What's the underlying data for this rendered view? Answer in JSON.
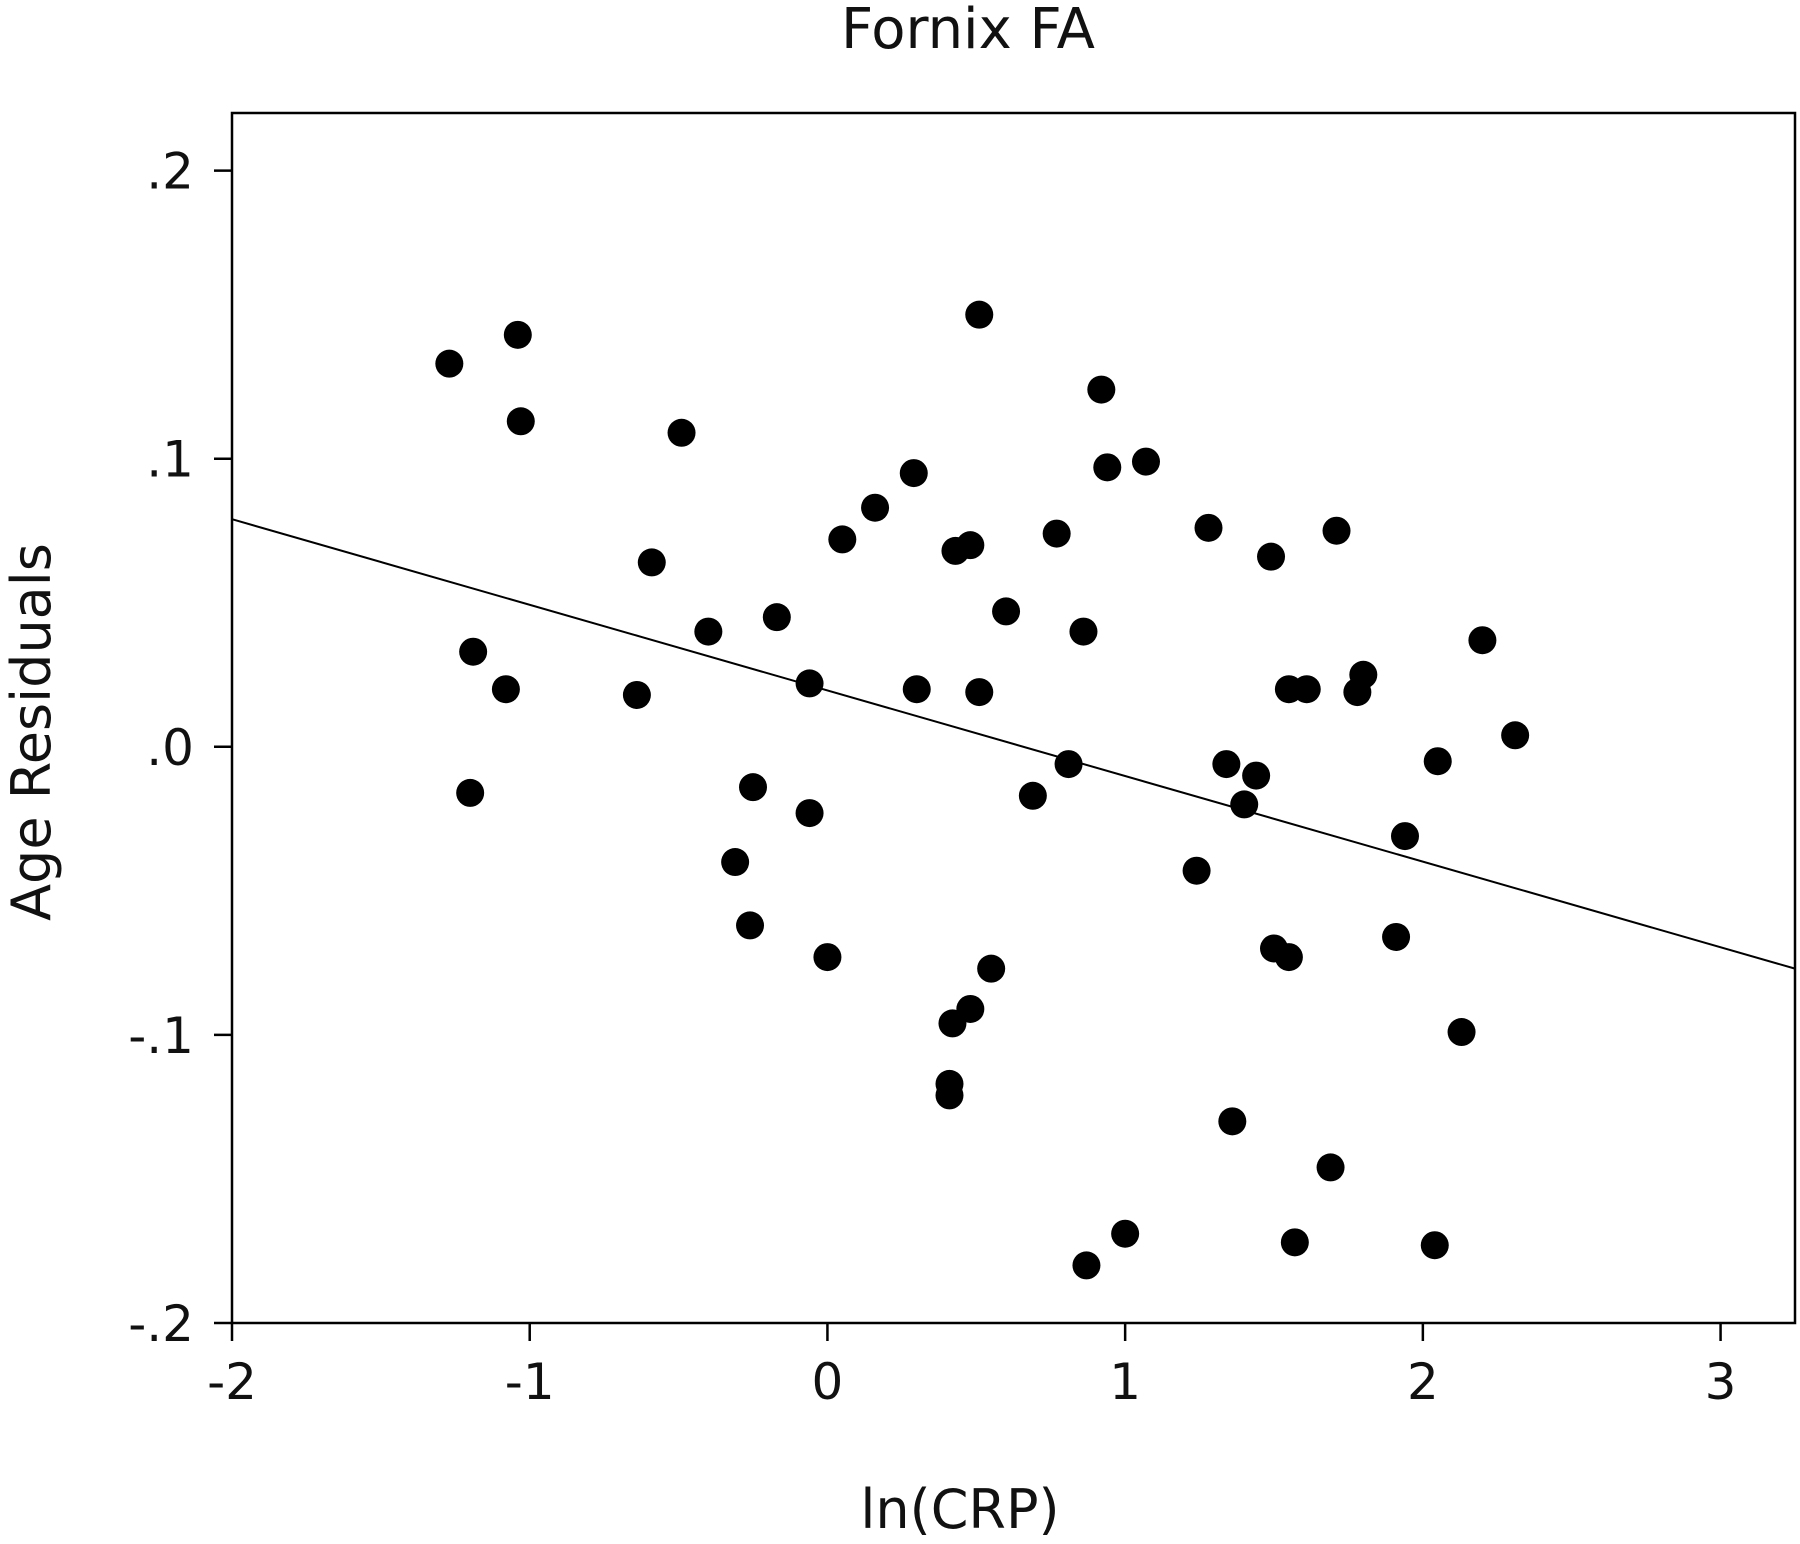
{
  "chart_data": {
    "type": "scatter",
    "title": "Fornix FA",
    "xlabel": "ln(CRP)",
    "ylabel": "Age Residuals",
    "xlim": [
      -2,
      3.25
    ],
    "ylim": [
      -0.2,
      0.22
    ],
    "xticks": [
      {
        "value": -2,
        "label": "-2"
      },
      {
        "value": -1,
        "label": "-1"
      },
      {
        "value": 0,
        "label": "0"
      },
      {
        "value": 1,
        "label": "1"
      },
      {
        "value": 2,
        "label": "2"
      },
      {
        "value": 3,
        "label": "3"
      }
    ],
    "yticks": [
      {
        "value": 0.2,
        "label": ".2"
      },
      {
        "value": 0.1,
        "label": ".1"
      },
      {
        "value": 0.0,
        "label": ".0"
      },
      {
        "value": -0.1,
        "label": "-.1"
      },
      {
        "value": -0.2,
        "label": "-.2"
      }
    ],
    "grid": false,
    "fit_line": {
      "x": [
        -2,
        3.25
      ],
      "y": [
        0.079,
        -0.077
      ]
    },
    "colors": {
      "points": "#000000",
      "line": "#000000",
      "frame": "#000000"
    },
    "points": [
      {
        "x": -1.27,
        "y": 0.133
      },
      {
        "x": -1.04,
        "y": 0.143
      },
      {
        "x": -1.03,
        "y": 0.113
      },
      {
        "x": -1.19,
        "y": 0.033
      },
      {
        "x": -1.08,
        "y": 0.02
      },
      {
        "x": -1.2,
        "y": -0.016
      },
      {
        "x": -0.49,
        "y": 0.109
      },
      {
        "x": -0.59,
        "y": 0.064
      },
      {
        "x": -0.64,
        "y": 0.018
      },
      {
        "x": -0.4,
        "y": 0.04
      },
      {
        "x": -0.17,
        "y": 0.045
      },
      {
        "x": -0.06,
        "y": 0.022
      },
      {
        "x": -0.25,
        "y": -0.014
      },
      {
        "x": -0.06,
        "y": -0.023
      },
      {
        "x": -0.31,
        "y": -0.04
      },
      {
        "x": -0.26,
        "y": -0.062
      },
      {
        "x": 0.0,
        "y": -0.073
      },
      {
        "x": 0.05,
        "y": 0.072
      },
      {
        "x": 0.16,
        "y": 0.083
      },
      {
        "x": 0.29,
        "y": 0.095
      },
      {
        "x": 0.3,
        "y": 0.02
      },
      {
        "x": 0.43,
        "y": 0.068
      },
      {
        "x": 0.48,
        "y": 0.07
      },
      {
        "x": 0.51,
        "y": 0.15
      },
      {
        "x": 0.51,
        "y": 0.019
      },
      {
        "x": 0.6,
        "y": 0.047
      },
      {
        "x": 0.55,
        "y": -0.077
      },
      {
        "x": 0.48,
        "y": -0.091
      },
      {
        "x": 0.42,
        "y": -0.096
      },
      {
        "x": 0.41,
        "y": -0.117
      },
      {
        "x": 0.41,
        "y": -0.121
      },
      {
        "x": 0.69,
        "y": -0.017
      },
      {
        "x": 0.77,
        "y": 0.074
      },
      {
        "x": 0.81,
        "y": -0.006
      },
      {
        "x": 0.86,
        "y": 0.04
      },
      {
        "x": 0.92,
        "y": 0.124
      },
      {
        "x": 0.94,
        "y": 0.097
      },
      {
        "x": 1.07,
        "y": 0.099
      },
      {
        "x": 0.87,
        "y": -0.18
      },
      {
        "x": 1.0,
        "y": -0.169
      },
      {
        "x": 1.28,
        "y": 0.076
      },
      {
        "x": 1.24,
        "y": -0.043
      },
      {
        "x": 1.34,
        "y": -0.006
      },
      {
        "x": 1.44,
        "y": -0.01
      },
      {
        "x": 1.4,
        "y": -0.02
      },
      {
        "x": 1.49,
        "y": 0.066
      },
      {
        "x": 1.55,
        "y": 0.02
      },
      {
        "x": 1.61,
        "y": 0.02
      },
      {
        "x": 1.5,
        "y": -0.07
      },
      {
        "x": 1.55,
        "y": -0.073
      },
      {
        "x": 1.36,
        "y": -0.13
      },
      {
        "x": 1.57,
        "y": -0.172
      },
      {
        "x": 1.71,
        "y": 0.075
      },
      {
        "x": 1.8,
        "y": 0.025
      },
      {
        "x": 1.78,
        "y": 0.019
      },
      {
        "x": 1.69,
        "y": -0.146
      },
      {
        "x": 1.94,
        "y": -0.031
      },
      {
        "x": 1.91,
        "y": -0.066
      },
      {
        "x": 2.05,
        "y": -0.005
      },
      {
        "x": 2.04,
        "y": -0.173
      },
      {
        "x": 2.2,
        "y": 0.037
      },
      {
        "x": 2.31,
        "y": 0.004
      },
      {
        "x": 2.13,
        "y": -0.099
      }
    ]
  }
}
